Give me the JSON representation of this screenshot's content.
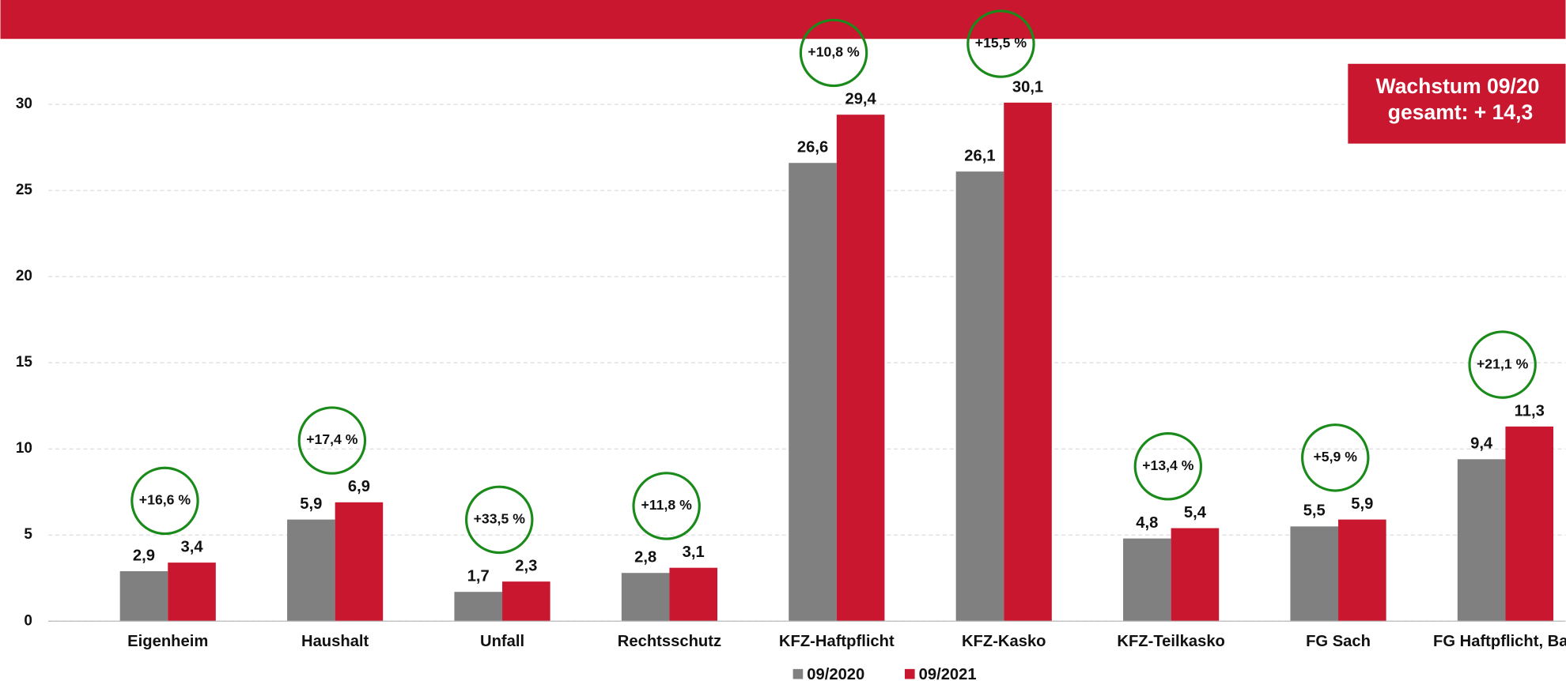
{
  "chart_data": {
    "type": "bar",
    "categories": [
      "Eigenheim",
      "Haushalt",
      "Unfall",
      "Rechtsschutz",
      "KFZ-Haftpflicht",
      "KFZ-Kasko",
      "KFZ-Teilkasko",
      "FG Sach",
      "FG Haftpflicht, Bau"
    ],
    "series": [
      {
        "name": "09/2020",
        "color": "#808080",
        "values": [
          2.9,
          5.9,
          1.7,
          2.8,
          26.6,
          26.1,
          4.8,
          5.5,
          9.4
        ],
        "value_labels": [
          "2,9",
          "5,9",
          "1,7",
          "2,8",
          "26,6",
          "26,1",
          "4,8",
          "5,5",
          "9,4"
        ]
      },
      {
        "name": "09/2021",
        "color": "#c8172f",
        "values": [
          3.4,
          6.9,
          2.3,
          3.1,
          29.4,
          30.1,
          5.4,
          5.9,
          11.3
        ],
        "value_labels": [
          "3,4",
          "6,9",
          "2,3",
          "3,1",
          "29,4",
          "30,1",
          "5,4",
          "5,9",
          "11,3"
        ]
      }
    ],
    "annotations": [
      "+16,6 %",
      "+17,4 %",
      "+33,5 %",
      "+11,8 %",
      "+10,8 %",
      "+15,5 %",
      "+13,4 %",
      "+5,9 %",
      "+21,1 %"
    ],
    "growth_box": [
      "Wachstum 09/20",
      "gesamt: + 14,3"
    ],
    "ylim": [
      0,
      33.8
    ],
    "yticks": [
      0,
      5,
      10,
      15,
      20,
      25,
      30
    ],
    "grid": true,
    "legend": "bottom"
  }
}
